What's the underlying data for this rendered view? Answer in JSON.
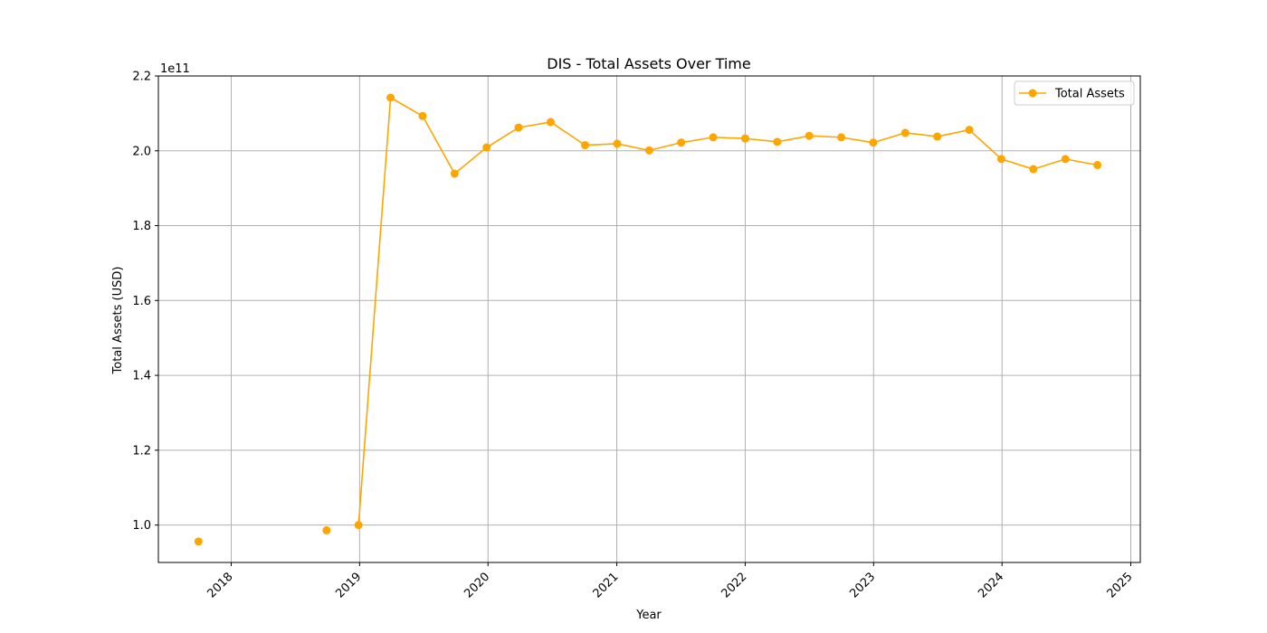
{
  "chart_data": {
    "type": "line",
    "title": "DIS - Total Assets Over Time",
    "xlabel": "Year",
    "ylabel": "Total Assets (USD)",
    "y_offset_label": "1e11",
    "y_scale_divisor": 100000000000,
    "xlim": [
      "2017-06-08",
      "2025-01-28"
    ],
    "ylim": [
      0.9,
      2.2
    ],
    "x_ticks": [
      {
        "date": "2018-01-01",
        "label": "2018"
      },
      {
        "date": "2019-01-01",
        "label": "2019"
      },
      {
        "date": "2020-01-01",
        "label": "2020"
      },
      {
        "date": "2021-01-01",
        "label": "2021"
      },
      {
        "date": "2022-01-01",
        "label": "2022"
      },
      {
        "date": "2023-01-01",
        "label": "2023"
      },
      {
        "date": "2024-01-01",
        "label": "2024"
      },
      {
        "date": "2025-01-01",
        "label": "2025"
      }
    ],
    "y_ticks": [
      {
        "value": 1.0,
        "label": "1.0"
      },
      {
        "value": 1.2,
        "label": "1.2"
      },
      {
        "value": 1.4,
        "label": "1.4"
      },
      {
        "value": 1.6,
        "label": "1.6"
      },
      {
        "value": 1.8,
        "label": "1.8"
      },
      {
        "value": 2.0,
        "label": "2.0"
      },
      {
        "value": 2.2,
        "label": "2.2"
      }
    ],
    "grid": true,
    "legend_position": "top-right",
    "series": [
      {
        "name": "Total Assets",
        "color": "#FFA500",
        "marker": "circle",
        "points": [
          {
            "date": "2017-09-30",
            "value": 95600000000
          },
          {
            "date": "2018-09-29",
            "value": 98600000000
          },
          {
            "date": "2018-12-29",
            "value": 100000000000
          },
          {
            "date": "2019-03-30",
            "value": 214200000000
          },
          {
            "date": "2019-06-29",
            "value": 209300000000
          },
          {
            "date": "2019-09-28",
            "value": 193900000000
          },
          {
            "date": "2019-12-28",
            "value": 200900000000
          },
          {
            "date": "2020-03-28",
            "value": 206200000000
          },
          {
            "date": "2020-06-27",
            "value": 207700000000
          },
          {
            "date": "2020-10-03",
            "value": 201500000000
          },
          {
            "date": "2021-01-02",
            "value": 201900000000
          },
          {
            "date": "2021-04-03",
            "value": 200100000000
          },
          {
            "date": "2021-07-03",
            "value": 202200000000
          },
          {
            "date": "2021-10-02",
            "value": 203600000000
          },
          {
            "date": "2022-01-01",
            "value": 203300000000
          },
          {
            "date": "2022-04-02",
            "value": 202400000000
          },
          {
            "date": "2022-07-02",
            "value": 204000000000
          },
          {
            "date": "2022-10-01",
            "value": 203600000000
          },
          {
            "date": "2022-12-31",
            "value": 202200000000
          },
          {
            "date": "2023-04-01",
            "value": 204800000000
          },
          {
            "date": "2023-07-01",
            "value": 203800000000
          },
          {
            "date": "2023-09-30",
            "value": 205600000000
          },
          {
            "date": "2023-12-30",
            "value": 197800000000
          },
          {
            "date": "2024-03-30",
            "value": 195100000000
          },
          {
            "date": "2024-06-29",
            "value": 197800000000
          },
          {
            "date": "2024-09-28",
            "value": 196200000000
          }
        ],
        "connected_from_index": 2
      }
    ]
  }
}
